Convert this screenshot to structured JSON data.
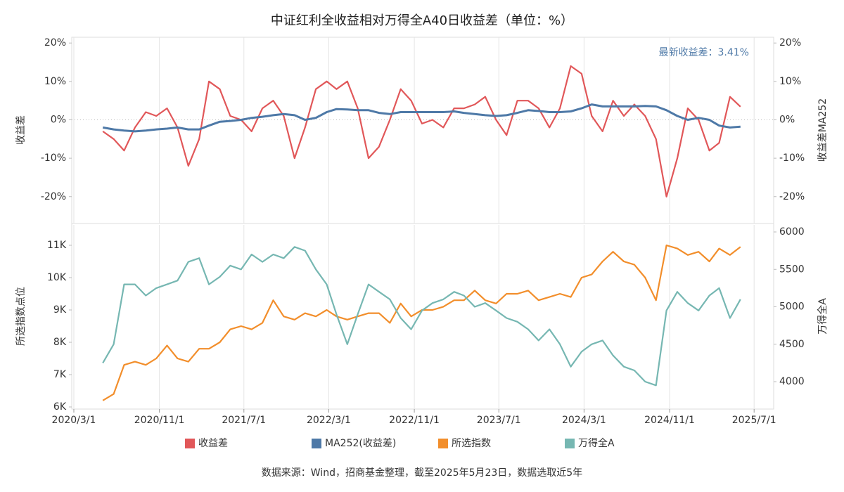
{
  "chart_data": [
    {
      "type": "line",
      "title": "中证红利全收益相对万得全A40日收益差（单位：%）",
      "ylabel": "收益差",
      "y2label": "收益差MA252",
      "annotation": "最新收益差：3.41%",
      "x": [
        "2020/5/23",
        "2020/6/23",
        "2020/7/23",
        "2020/8/23",
        "2020/9/23",
        "2020/10/23",
        "2020/11/23",
        "2020/12/23",
        "2021/1/23",
        "2021/2/23",
        "2021/3/23",
        "2021/4/23",
        "2021/5/23",
        "2021/6/23",
        "2021/7/23",
        "2021/8/23",
        "2021/9/23",
        "2021/10/23",
        "2021/11/23",
        "2021/12/23",
        "2022/1/23",
        "2022/2/23",
        "2022/3/23",
        "2022/4/23",
        "2022/5/23",
        "2022/6/23",
        "2022/7/23",
        "2022/8/23",
        "2022/9/23",
        "2022/10/23",
        "2022/11/23",
        "2022/12/23",
        "2023/1/23",
        "2023/2/23",
        "2023/3/23",
        "2023/4/23",
        "2023/5/23",
        "2023/6/23",
        "2023/7/23",
        "2023/8/23",
        "2023/9/23",
        "2023/10/23",
        "2023/11/23",
        "2023/12/23",
        "2024/1/23",
        "2024/2/23",
        "2024/3/23",
        "2024/4/23",
        "2024/5/23",
        "2024/6/23",
        "2024/7/23",
        "2024/8/23",
        "2024/9/23",
        "2024/10/23",
        "2024/11/23",
        "2024/12/23",
        "2025/1/23",
        "2025/2/23",
        "2025/3/23",
        "2025/4/23",
        "2025/5/23"
      ],
      "xlim": [
        "2020/2/24",
        "2025/8/26"
      ],
      "ylim": [
        -27,
        21.5
      ],
      "yticks": [
        {
          "value": 20,
          "label": "20%"
        },
        {
          "value": 10,
          "label": "10%"
        },
        {
          "value": 0,
          "label": "0%"
        },
        {
          "value": -10,
          "label": "-10%"
        },
        {
          "value": -20,
          "label": "-20%"
        }
      ],
      "y2lim": [
        -27,
        21.5
      ],
      "y2ticks": [
        {
          "value": 20,
          "label": "20%"
        },
        {
          "value": 10,
          "label": "10%"
        },
        {
          "value": 0,
          "label": "0%"
        },
        {
          "value": -10,
          "label": "-10%"
        },
        {
          "value": -20,
          "label": "-20%"
        }
      ],
      "grid": "x",
      "series": [
        {
          "name": "收益差",
          "color": "#e15759",
          "values": [
            -3,
            -5,
            -8,
            -2,
            2,
            1,
            3,
            -2,
            -12,
            -5,
            10,
            8,
            1,
            0,
            -3,
            3,
            5,
            1,
            -10,
            -2,
            8,
            10,
            8,
            10,
            3,
            -10,
            -7,
            0,
            8,
            5,
            -1,
            0,
            -2,
            3,
            3,
            4,
            6,
            0,
            -4,
            5,
            5,
            3,
            -2,
            3,
            14,
            12,
            1,
            -3,
            5,
            1,
            4,
            1,
            -5,
            -20,
            -10,
            3,
            0,
            -8,
            -6,
            6,
            3.41
          ]
        },
        {
          "name": "MA252(收益差)",
          "color": "#4e79a7",
          "axis": "y2",
          "values": [
            -2,
            -2.5,
            -2.8,
            -3,
            -2.8,
            -2.5,
            -2.3,
            -2,
            -2.5,
            -2.5,
            -1.5,
            -0.5,
            -0.3,
            0,
            0.5,
            0.8,
            1.2,
            1.5,
            1.2,
            0,
            0.5,
            2,
            2.8,
            2.7,
            2.5,
            2.5,
            1.8,
            1.5,
            2,
            2,
            2,
            2,
            2,
            2.2,
            1.8,
            1.5,
            1.2,
            1,
            1.2,
            1.8,
            2.5,
            2.3,
            2,
            2,
            2.2,
            3,
            4,
            3.5,
            3.5,
            3.5,
            3.5,
            3.6,
            3.5,
            2.5,
            1,
            0,
            0.5,
            0,
            -1.5,
            -2,
            -1.8
          ]
        }
      ]
    },
    {
      "type": "line",
      "ylabel": "所选指数点位",
      "y2label": "万得全A",
      "x": [
        "2020/5/23",
        "2020/6/23",
        "2020/7/23",
        "2020/8/23",
        "2020/9/23",
        "2020/10/23",
        "2020/11/23",
        "2020/12/23",
        "2021/1/23",
        "2021/2/23",
        "2021/3/23",
        "2021/4/23",
        "2021/5/23",
        "2021/6/23",
        "2021/7/23",
        "2021/8/23",
        "2021/9/23",
        "2021/10/23",
        "2021/11/23",
        "2021/12/23",
        "2022/1/23",
        "2022/2/23",
        "2022/3/23",
        "2022/4/23",
        "2022/5/23",
        "2022/6/23",
        "2022/7/23",
        "2022/8/23",
        "2022/9/23",
        "2022/10/23",
        "2022/11/23",
        "2022/12/23",
        "2023/1/23",
        "2023/2/23",
        "2023/3/23",
        "2023/4/23",
        "2023/5/23",
        "2023/6/23",
        "2023/7/23",
        "2023/8/23",
        "2023/9/23",
        "2023/10/23",
        "2023/11/23",
        "2023/12/23",
        "2024/1/23",
        "2024/2/23",
        "2024/3/23",
        "2024/4/23",
        "2024/5/23",
        "2024/6/23",
        "2024/7/23",
        "2024/8/23",
        "2024/9/23",
        "2024/10/23",
        "2024/11/23",
        "2024/12/23",
        "2025/1/23",
        "2025/2/23",
        "2025/3/23",
        "2025/4/23",
        "2025/5/23"
      ],
      "xlim": [
        "2020/2/24",
        "2025/8/26"
      ],
      "xticks": [
        "2020/3/1",
        "2020/11/1",
        "2021/7/1",
        "2022/3/1",
        "2022/11/1",
        "2023/7/1",
        "2024/3/1",
        "2024/11/1",
        "2025/7/1"
      ],
      "ylim": [
        5935,
        11630
      ],
      "yticks": [
        {
          "value": 6000,
          "label": "6K"
        },
        {
          "value": 7000,
          "label": "7K"
        },
        {
          "value": 8000,
          "label": "8K"
        },
        {
          "value": 9000,
          "label": "9K"
        },
        {
          "value": 10000,
          "label": "10K"
        },
        {
          "value": 11000,
          "label": "11K"
        }
      ],
      "y2lim": [
        3634,
        6094
      ],
      "y2ticks": [
        4000,
        4500,
        5000,
        5500,
        6000
      ],
      "grid": "x",
      "legend": "bottom",
      "source": "数据来源：Wind，招商基金整理，截至2025年5月23日，数据选取近5年",
      "series": [
        {
          "name": "所选指数",
          "color": "#f28e2b",
          "values": [
            6200,
            6400,
            7300,
            7400,
            7300,
            7500,
            7900,
            7500,
            7400,
            7800,
            7800,
            8000,
            8400,
            8500,
            8400,
            8600,
            9300,
            8800,
            8700,
            8900,
            8800,
            9000,
            8800,
            8700,
            8800,
            8900,
            8900,
            8600,
            9200,
            8800,
            9000,
            9000,
            9100,
            9300,
            9300,
            9600,
            9300,
            9200,
            9500,
            9500,
            9600,
            9300,
            9400,
            9500,
            9400,
            10000,
            10100,
            10500,
            10800,
            10500,
            10400,
            10000,
            9300,
            11000,
            10900,
            10700,
            10800,
            10500,
            10900,
            10700,
            10950
          ]
        },
        {
          "name": "万得全A",
          "color": "#76b7b2",
          "axis": "y2",
          "values": [
            4250,
            4500,
            5300,
            5300,
            5150,
            5250,
            5300,
            5350,
            5600,
            5650,
            5300,
            5400,
            5550,
            5500,
            5700,
            5600,
            5700,
            5650,
            5800,
            5750,
            5500,
            5300,
            4900,
            4500,
            4900,
            5300,
            5200,
            5100,
            4850,
            4700,
            4950,
            5050,
            5100,
            5200,
            5150,
            5000,
            5050,
            4950,
            4850,
            4800,
            4700,
            4550,
            4700,
            4500,
            4200,
            4400,
            4500,
            4550,
            4350,
            4200,
            4150,
            4000,
            3950,
            4950,
            5200,
            5050,
            4950,
            5150,
            5250,
            4850,
            5100
          ]
        }
      ]
    }
  ]
}
